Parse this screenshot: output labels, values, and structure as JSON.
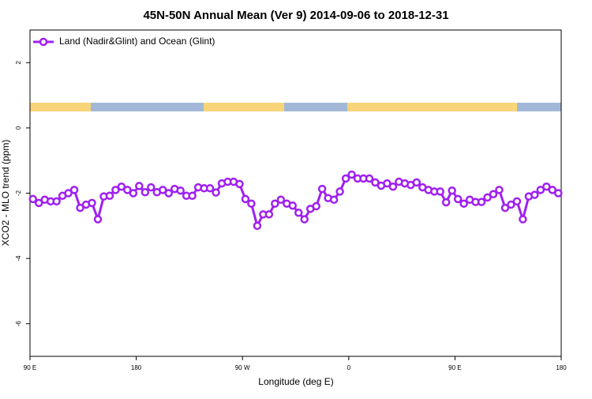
{
  "chart_data": {
    "type": "line",
    "title": "45N-50N Annual Mean (Ver 9)   2014-09-06 to 2018-12-31",
    "x_label": "Longitude (deg E)",
    "y_label": "XCO2 - MLO trend (ppm)",
    "legend": "top-left",
    "xlim": [
      90,
      540
    ],
    "xticks": [
      {
        "value": 90,
        "label": "90 E"
      },
      180,
      {
        "value": 270,
        "label": "90 W"
      },
      {
        "value": 360,
        "label": "0"
      },
      {
        "value": 450,
        "label": "90 E"
      },
      {
        "value": 540,
        "label": "180"
      }
    ],
    "ylim": [
      -7,
      3
    ],
    "yticks": [
      -6,
      -4,
      -2,
      0,
      2
    ],
    "x": [
      92.5,
      97.5,
      102.5,
      107.5,
      112.5,
      117.5,
      122.5,
      127.5,
      132.5,
      137.5,
      142.5,
      147.5,
      152.5,
      157.5,
      162.5,
      167.5,
      172.5,
      177.5,
      182.5,
      187.5,
      192.5,
      197.5,
      202.5,
      207.5,
      212.5,
      217.5,
      222.5,
      227.5,
      232.5,
      237.5,
      242.5,
      247.5,
      252.5,
      257.5,
      262.5,
      267.5,
      272.5,
      277.5,
      282.5,
      287.5,
      292.5,
      297.5,
      302.5,
      307.5,
      312.5,
      317.5,
      322.5,
      327.5,
      332.5,
      337.5,
      342.5,
      347.5,
      352.5,
      357.5,
      362.5,
      367.5,
      372.5,
      377.5,
      382.5,
      387.5,
      392.5,
      397.5,
      402.5,
      407.5,
      412.5,
      417.5,
      422.5,
      427.5,
      432.5,
      437.5,
      442.5,
      447.5,
      452.5,
      457.5,
      462.5,
      467.5,
      472.5,
      477.5,
      482.5,
      487.5,
      492.5,
      497.5,
      502.5,
      507.5,
      512.5,
      517.5,
      522.5,
      527.5,
      532.5,
      537.5
    ],
    "series": [
      {
        "name": "Land (Nadir&Glint) and Ocean (Glint)",
        "color": "#a020f0",
        "values": [
          -2.18,
          -2.3,
          -2.2,
          -2.25,
          -2.25,
          -2.08,
          -2.0,
          -1.9,
          -2.45,
          -2.35,
          -2.3,
          -2.8,
          -2.1,
          -2.08,
          -1.9,
          -1.8,
          -1.9,
          -2.0,
          -1.78,
          -1.97,
          -1.82,
          -1.97,
          -1.9,
          -2.0,
          -1.87,
          -1.92,
          -2.08,
          -2.08,
          -1.82,
          -1.85,
          -1.85,
          -1.98,
          -1.7,
          -1.65,
          -1.65,
          -1.72,
          -2.18,
          -2.32,
          -3.0,
          -2.65,
          -2.65,
          -2.32,
          -2.2,
          -2.32,
          -2.38,
          -2.6,
          -2.8,
          -2.48,
          -2.4,
          -1.87,
          -2.15,
          -2.2,
          -1.95,
          -1.55,
          -1.43,
          -1.55,
          -1.55,
          -1.55,
          -1.67,
          -1.77,
          -1.7,
          -1.8,
          -1.65,
          -1.7,
          -1.75,
          -1.67,
          -1.82,
          -1.9,
          -1.95,
          -1.95,
          -2.28,
          -1.92,
          -2.18,
          -2.32,
          -2.2,
          -2.27,
          -2.27,
          -2.13,
          -2.03,
          -1.9,
          -2.45,
          -2.35,
          -2.25,
          -2.8,
          -2.1,
          -2.05,
          -1.9,
          -1.8,
          -1.9,
          -2.0
        ]
      }
    ]
  }
}
